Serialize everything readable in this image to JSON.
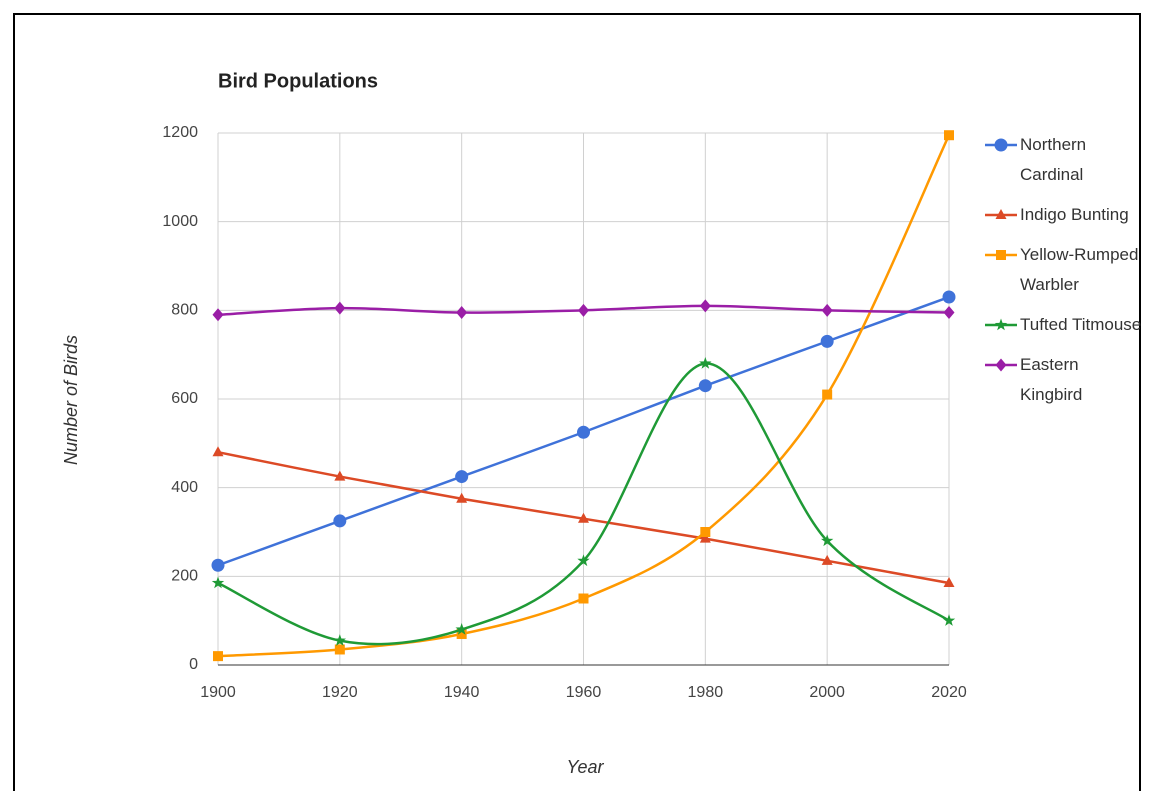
{
  "chart_data": {
    "type": "line",
    "title": "Bird Populations",
    "x_label": "Year",
    "y_label": "Number of Birds",
    "x": [
      1900,
      1920,
      1940,
      1960,
      1980,
      2000,
      2020
    ],
    "xlim": [
      1900,
      2020
    ],
    "xticks": [
      1900,
      1920,
      1940,
      1960,
      1980,
      2000,
      2020
    ],
    "ylim": [
      0,
      1200
    ],
    "yticks": [
      0,
      200,
      400,
      600,
      800,
      1000,
      1200
    ],
    "grid": true,
    "smooth": true,
    "legend": "right",
    "series": [
      {
        "name": "Northern Cardinal",
        "color": "#3f72d9",
        "marker": "circle",
        "values": [
          225,
          325,
          425,
          525,
          630,
          730,
          830
        ]
      },
      {
        "name": "Indigo Bunting",
        "color": "#dc4a26",
        "marker": "triangle",
        "values": [
          480,
          425,
          375,
          330,
          285,
          235,
          185
        ]
      },
      {
        "name": "Yellow-Rumped Warbler",
        "color": "#ff9900",
        "marker": "square",
        "values": [
          20,
          35,
          70,
          150,
          300,
          610,
          1195
        ]
      },
      {
        "name": "Tufted Titmouse",
        "color": "#1f9a36",
        "marker": "star",
        "values": [
          185,
          55,
          80,
          235,
          680,
          280,
          100
        ]
      },
      {
        "name": "Eastern Kingbird",
        "color": "#9a1ea6",
        "marker": "diamond",
        "values": [
          790,
          805,
          795,
          800,
          810,
          800,
          795
        ]
      }
    ]
  }
}
